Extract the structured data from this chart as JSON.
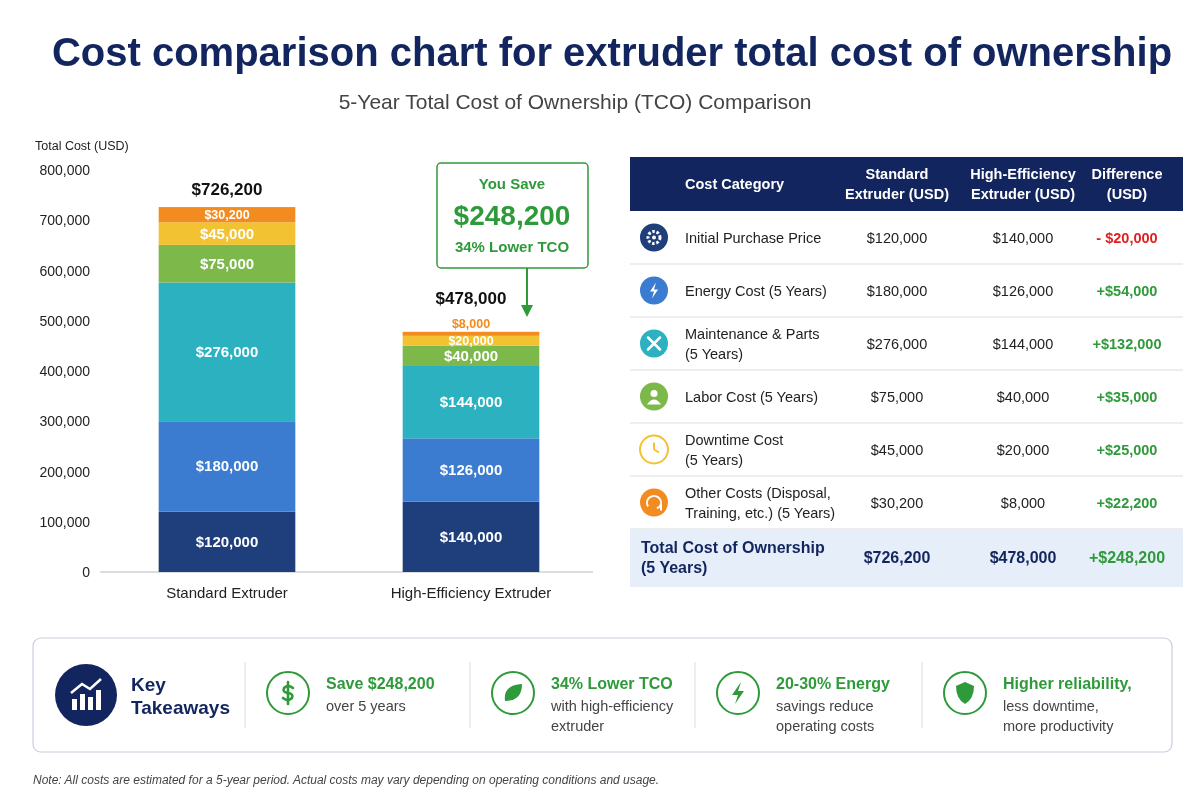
{
  "chart_data": [
    {
      "type": "bar",
      "title": "Cost comparison chart for extruder total cost of ownership",
      "subtitle": "5-Year Total Cost of Ownership (TCO) Comparison",
      "ylabel": "Total Cost (USD)",
      "categories": [
        "Standard Extruder",
        "High-Efficiency Extruder"
      ],
      "stacked": true,
      "ylim": [
        0,
        800000
      ],
      "yticks": [
        0,
        {
          "value": 100000,
          "label": "100,000"
        },
        {
          "value": 200000,
          "label": "200,000"
        },
        {
          "value": 300000,
          "label": "300,000"
        },
        {
          "value": 400000,
          "label": "400,000"
        },
        {
          "value": 500000,
          "label": "500,000"
        },
        {
          "value": 600000,
          "label": "600,000"
        },
        {
          "value": 700000,
          "label": "700,000"
        },
        {
          "value": 800000,
          "label": "800,000"
        }
      ],
      "series": [
        {
          "color": "#1e3f7c",
          "values": [
            120000,
            140000
          ],
          "value_labels": [
            "$120,000",
            "$140,000"
          ]
        },
        {
          "color": "#3b7bd0",
          "values": [
            180000,
            126000
          ],
          "value_labels": [
            "$180,000",
            "$126,000"
          ]
        },
        {
          "color": "#2bb1c0",
          "values": [
            276000,
            144000
          ],
          "value_labels": [
            "$276,000",
            "$144,000"
          ]
        },
        {
          "color": "#7cb84a",
          "values": [
            75000,
            40000
          ],
          "value_labels": [
            "$75,000",
            "$40,000"
          ]
        },
        {
          "color": "#f3c232",
          "values": [
            45000,
            20000
          ],
          "value_labels": [
            "$45,000",
            "$20,000"
          ]
        },
        {
          "color": "#f28b20",
          "values": [
            30200,
            8000
          ],
          "value_labels": [
            "$30,200",
            "$8,000"
          ]
        }
      ],
      "totals": [
        "$726,200",
        "$478,000"
      ],
      "annotations": [
        "You Save",
        "$248,200",
        "34% Lower TCO",
        "Note: All costs are estimated for a 5-year period. Actual costs may vary depending on operating conditions and usage."
      ]
    },
    {
      "type": "other",
      "xlabel": "Cost Category",
      "categories": [
        "Initial Purchase Price",
        "Energy Cost (5 Years)",
        "Maintenance & Parts\n(5 Years)",
        "Labor Cost (5 Years)",
        "Downtime Cost\n(5 Years)",
        "Other Costs (Disposal,\nTraining, etc.) (5 Years)",
        "Total Cost of Ownership\n(5 Years)"
      ],
      "series": [
        {
          "name": "Standard\nExtruder (USD)",
          "values": [
            120000,
            180000,
            276000,
            75000,
            45000,
            30200,
            726200
          ],
          "value_labels": [
            "$120,000",
            "$180,000",
            "$276,000",
            "$75,000",
            "$45,000",
            "$30,200",
            "$726,200"
          ]
        },
        {
          "name": "High-Efficiency\nExtruder (USD)",
          "values": [
            140000,
            126000,
            144000,
            40000,
            20000,
            8000,
            478000
          ],
          "value_labels": [
            "$140,000",
            "$126,000",
            "$144,000",
            "$40,000",
            "$20,000",
            "$8,000",
            "$478,000"
          ]
        },
        {
          "name": "Difference\n(USD)",
          "values": [
            -20000,
            54000,
            132000,
            35000,
            25000,
            22200,
            248200
          ],
          "value_labels": [
            "- $20,000",
            "+$54,000",
            "+$132,000",
            "+$35,000",
            "+$25,000",
            "+$22,200",
            "+$248,200"
          ],
          "colors": [
            "#e02020",
            "#2e9a3a",
            "#2e9a3a",
            "#2e9a3a",
            "#2e9a3a",
            "#2e9a3a",
            "#2e9a3a"
          ]
        }
      ]
    },
    {
      "type": "other",
      "title": "Key\nTakeaways",
      "annotations": [
        "Save $248,200",
        "over 5 years",
        "34% Lower TCO",
        "with high-efficiency\nextruder",
        "20-30% Energy",
        "savings reduce\noperating costs",
        "Higher reliability,",
        "less downtime,\nmore productivity"
      ]
    }
  ]
}
